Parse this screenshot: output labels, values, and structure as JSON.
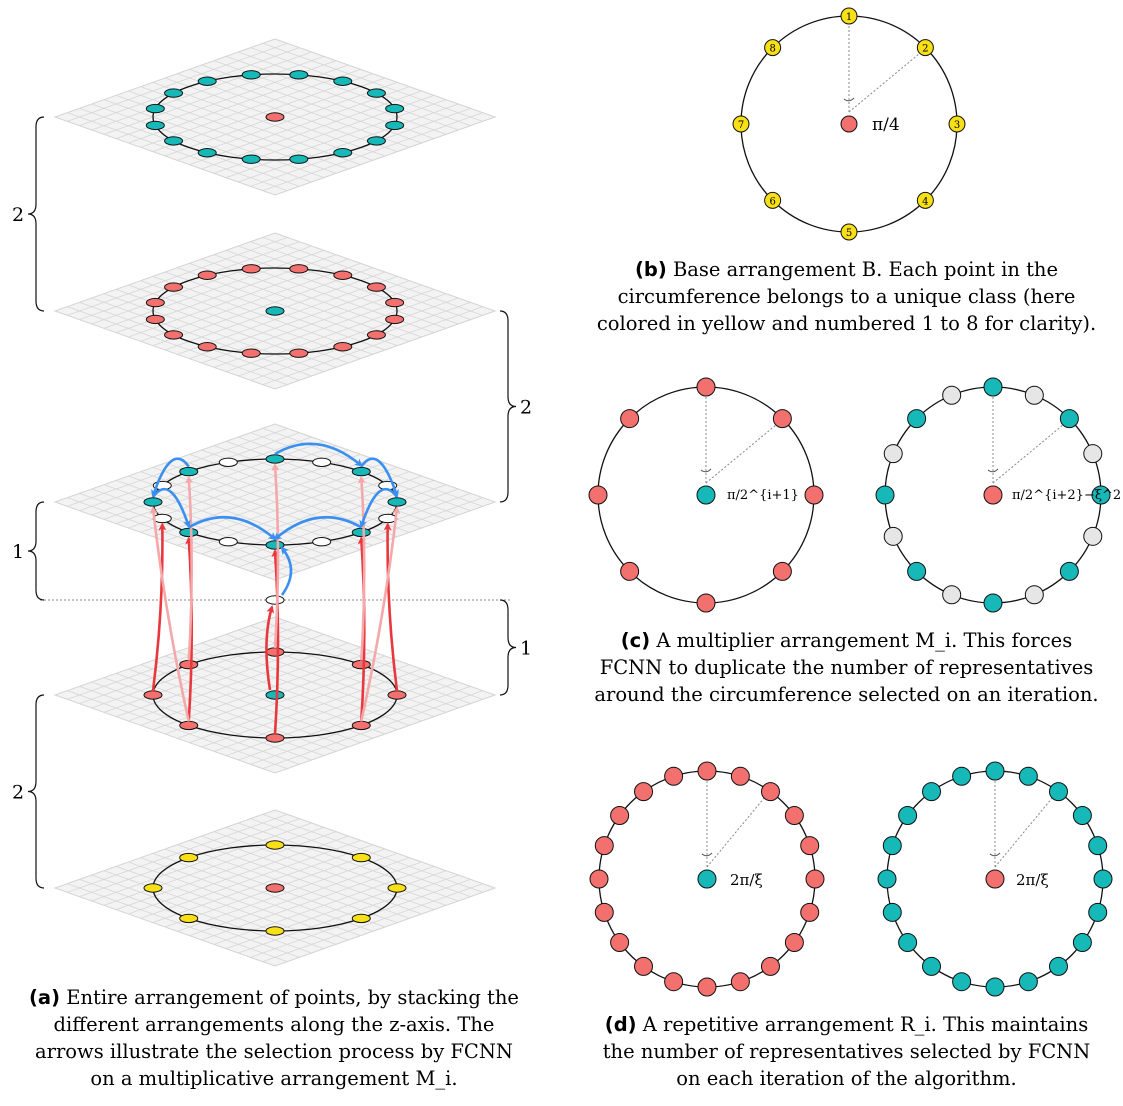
{
  "colors": {
    "red": "#f2706e",
    "teal": "#16b8b8",
    "yellow": "#f7e016",
    "white": "#ffffff",
    "light_gray": "#e9e9e9",
    "arrow_red": "#e8373d",
    "arrow_blue": "#3b8ff0"
  },
  "panel_a": {
    "braces": {
      "top": "2",
      "upper_mid": "2",
      "left_mid": "1",
      "right_mid": "1",
      "bottom": "2"
    },
    "caption": {
      "tag": "(a)",
      "line1": "Entire arrangement of points, by stacking the",
      "line2": "different arrangements along the z-axis. The",
      "line3": "arrows illustrate the selection process by FCNN",
      "line4": "on a multiplicative arrangement M_i."
    }
  },
  "panel_b": {
    "numbers": [
      "1",
      "2",
      "3",
      "4",
      "5",
      "6",
      "7",
      "8"
    ],
    "angle": "π/4",
    "caption": {
      "tag": "(b)",
      "line1": "Base arrangement B. Each point in the",
      "line2": "circumference belongs to a unique class (here",
      "line3": "colored in yellow and numbered 1 to 8 for clarity)."
    }
  },
  "panel_c": {
    "angle_left": "π/2^{i+1}",
    "angle_right": "π/2^{i+2}−ξ^2",
    "caption": {
      "tag": "(c)",
      "line1": "A multiplier arrangement M_i. This forces",
      "line2": "FCNN to duplicate the number of representatives",
      "line3": "around the circumference selected on an iteration."
    }
  },
  "panel_d": {
    "angle_left": "2π/ξ",
    "angle_right": "2π/ξ",
    "caption": {
      "tag": "(d)",
      "line1": "A repetitive arrangement R_i. This maintains",
      "line2": "the number of representatives selected by FCNN",
      "line3": "on each iteration of the algorithm."
    }
  }
}
